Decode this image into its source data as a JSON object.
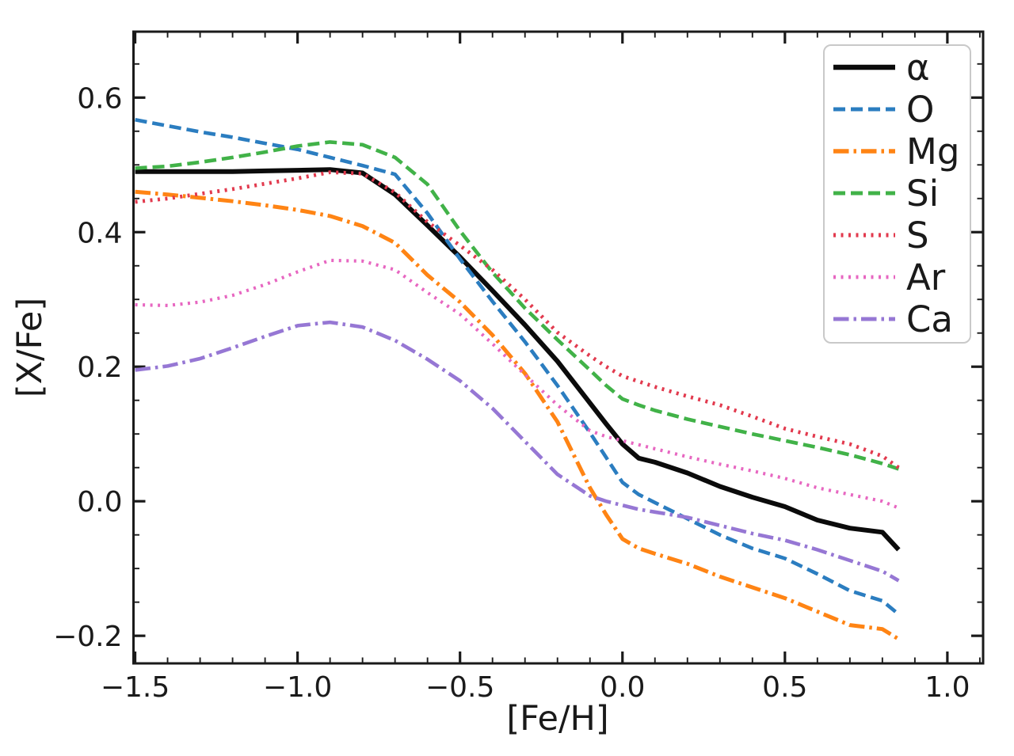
{
  "chart_data": {
    "type": "line",
    "title": "",
    "xlabel": "[Fe/H]",
    "ylabel": "[X/Fe]",
    "xlim": [
      -1.505,
      1.11
    ],
    "ylim": [
      -0.241,
      0.698
    ],
    "grid": false,
    "legend_position": "upper right",
    "x": [
      -1.5,
      -1.4,
      -1.3,
      -1.2,
      -1.1,
      -1.0,
      -0.9,
      -0.8,
      -0.7,
      -0.6,
      -0.5,
      -0.4,
      -0.3,
      -0.2,
      -0.1,
      -0.05,
      0.0,
      0.05,
      0.1,
      0.2,
      0.3,
      0.4,
      0.5,
      0.6,
      0.7,
      0.8,
      0.85
    ],
    "series": [
      {
        "name": "alpha",
        "label": "α",
        "color": "#0b0b0b",
        "style": "solid",
        "width": 6,
        "values": [
          0.49,
          0.49,
          0.49,
          0.49,
          0.491,
          0.492,
          0.493,
          0.488,
          0.456,
          0.41,
          0.363,
          0.313,
          0.262,
          0.208,
          0.146,
          0.115,
          0.085,
          0.064,
          0.058,
          0.042,
          0.022,
          0.006,
          -0.008,
          -0.028,
          -0.04,
          -0.046,
          -0.072
        ]
      },
      {
        "name": "O",
        "label": "O",
        "color": "#2b7dc0",
        "style": "dashed",
        "width": 4.6,
        "values": [
          0.567,
          0.558,
          0.549,
          0.541,
          0.532,
          0.523,
          0.511,
          0.499,
          0.486,
          0.428,
          0.36,
          0.297,
          0.237,
          0.172,
          0.102,
          0.065,
          0.028,
          0.01,
          -0.002,
          -0.026,
          -0.05,
          -0.07,
          -0.085,
          -0.108,
          -0.133,
          -0.148,
          -0.168
        ]
      },
      {
        "name": "Mg",
        "label": "Mg",
        "color": "#ff8414",
        "style": "dashdot",
        "width": 5,
        "values": [
          0.46,
          0.456,
          0.451,
          0.446,
          0.44,
          0.433,
          0.424,
          0.409,
          0.384,
          0.336,
          0.296,
          0.247,
          0.19,
          0.118,
          0.02,
          -0.02,
          -0.056,
          -0.07,
          -0.078,
          -0.093,
          -0.112,
          -0.128,
          -0.144,
          -0.164,
          -0.184,
          -0.19,
          -0.205
        ]
      },
      {
        "name": "Si",
        "label": "Si",
        "color": "#41b248",
        "style": "dashed",
        "width": 4.6,
        "values": [
          0.495,
          0.498,
          0.504,
          0.511,
          0.519,
          0.528,
          0.534,
          0.53,
          0.511,
          0.471,
          0.402,
          0.34,
          0.287,
          0.24,
          0.195,
          0.172,
          0.152,
          0.143,
          0.135,
          0.122,
          0.111,
          0.1,
          0.09,
          0.08,
          0.069,
          0.056,
          0.048
        ]
      },
      {
        "name": "S",
        "label": "S",
        "color": "#e23a4e",
        "style": "dotted",
        "width": 4.8,
        "values": [
          0.445,
          0.45,
          0.457,
          0.464,
          0.472,
          0.48,
          0.489,
          0.487,
          0.459,
          0.415,
          0.38,
          0.344,
          0.3,
          0.251,
          0.216,
          0.2,
          0.186,
          0.178,
          0.17,
          0.156,
          0.143,
          0.126,
          0.108,
          0.096,
          0.085,
          0.067,
          0.05
        ]
      },
      {
        "name": "Ar",
        "label": "Ar",
        "color": "#e767c1",
        "style": "dotted",
        "width": 4.2,
        "values": [
          0.292,
          0.291,
          0.296,
          0.306,
          0.322,
          0.341,
          0.358,
          0.357,
          0.344,
          0.31,
          0.278,
          0.234,
          0.188,
          0.143,
          0.105,
          0.096,
          0.09,
          0.084,
          0.078,
          0.066,
          0.055,
          0.045,
          0.034,
          0.02,
          0.01,
          0.0,
          -0.01
        ]
      },
      {
        "name": "Ca",
        "label": "Ca",
        "color": "#9677d4",
        "style": "dashdot",
        "width": 4.6,
        "values": [
          0.195,
          0.201,
          0.212,
          0.228,
          0.245,
          0.261,
          0.266,
          0.259,
          0.239,
          0.211,
          0.179,
          0.138,
          0.089,
          0.04,
          0.008,
          0.0,
          -0.006,
          -0.012,
          -0.016,
          -0.024,
          -0.036,
          -0.048,
          -0.058,
          -0.072,
          -0.088,
          -0.104,
          -0.118
        ]
      }
    ],
    "xticks": {
      "major": [
        -1.5,
        -1.0,
        -0.5,
        0.0,
        0.5,
        1.0
      ],
      "labels": [
        "−1.5",
        "−1.0",
        "−0.5",
        "0.0",
        "0.5",
        "1.0"
      ],
      "minor_step": 0.1
    },
    "yticks": {
      "major": [
        -0.2,
        0.0,
        0.2,
        0.4,
        0.6
      ],
      "labels": [
        "−0.2",
        "0.0",
        "0.2",
        "0.4",
        "0.6"
      ],
      "minor_step": 0.05
    },
    "axis_color": "#1a1a1a",
    "background_color": "#ffffff",
    "legend_border_color": "#c9c9c9"
  }
}
